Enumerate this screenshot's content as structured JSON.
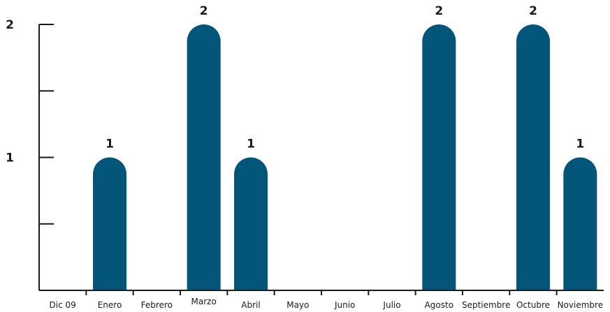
{
  "chart_data": {
    "type": "bar",
    "title": "",
    "xlabel": "",
    "ylabel": "",
    "categories": [
      "Dic 09",
      "Enero",
      "Febrero",
      "Marzo",
      "Abril",
      "Mayo",
      "Junio",
      "Julio",
      "Agosto",
      "Septiembre",
      "Octubre",
      "Noviembre"
    ],
    "values": [
      0,
      1,
      0,
      2,
      1,
      0,
      0,
      0,
      2,
      0,
      2,
      1
    ],
    "ylim": [
      0,
      2
    ],
    "y_ticks": [
      0,
      0.5,
      1,
      1.5,
      2
    ],
    "y_tick_labels": [
      {
        "value": 1,
        "label": "1"
      },
      {
        "value": 2,
        "label": "2"
      }
    ],
    "grid": false,
    "data_labels": true,
    "bar_color": "#03557a",
    "axis_color": "#1a1a1a"
  }
}
